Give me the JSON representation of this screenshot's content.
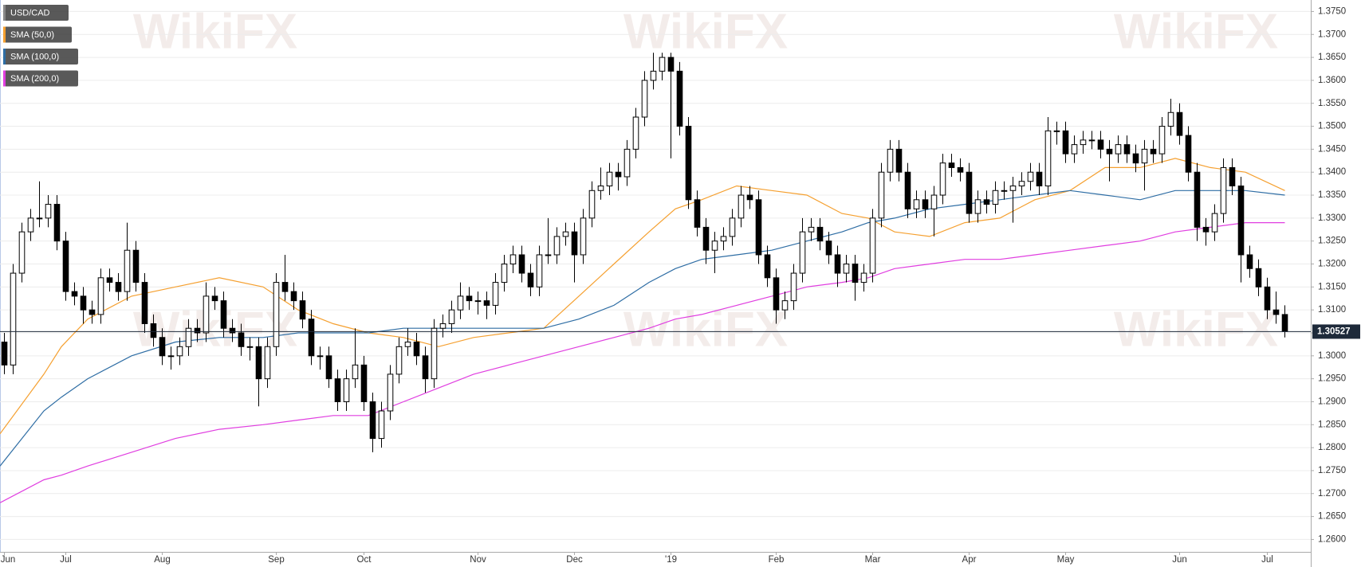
{
  "chart_data": {
    "type": "candlestick",
    "watermark": "WikiFX",
    "categories": [
      "Jun",
      null,
      null,
      null,
      null,
      null,
      null,
      "Jul",
      null,
      null,
      null,
      null,
      null,
      null,
      null,
      null,
      null,
      null,
      "Aug",
      null,
      null,
      null,
      null,
      null,
      null,
      null,
      null,
      null,
      null,
      null,
      null,
      "Sep",
      null,
      null,
      null,
      null,
      null,
      null,
      null,
      null,
      null,
      "Oct",
      null,
      null,
      null,
      null,
      null,
      null,
      null,
      null,
      null,
      null,
      null,
      null,
      "Nov",
      null,
      null,
      null,
      null,
      null,
      null,
      null,
      null,
      null,
      null,
      "Dec",
      null,
      null,
      null,
      null,
      null,
      null,
      null,
      null,
      null,
      null,
      "'19",
      null,
      null,
      null,
      null,
      null,
      null,
      null,
      null,
      null,
      null,
      null,
      "Feb",
      null,
      null,
      null,
      null,
      null,
      null,
      null,
      null,
      null,
      null,
      "Mar",
      null,
      null,
      null,
      null,
      null,
      null,
      null,
      null,
      null,
      null,
      "Apr",
      null,
      null,
      null,
      null,
      null,
      null,
      null,
      null,
      null,
      null,
      "May",
      null,
      null,
      null,
      null,
      null,
      null,
      null,
      null,
      null,
      null,
      null,
      null,
      "Jun",
      null,
      null,
      null,
      null,
      null,
      null,
      null,
      null,
      null,
      "Jul",
      null,
      null
    ],
    "series": [
      {
        "name": "USD/CAD",
        "color": "#000000",
        "open": [
          1.303,
          1.298,
          1.318,
          1.327,
          1.33,
          1.33,
          1.333,
          1.325,
          1.314,
          1.313,
          1.31,
          1.309,
          1.317,
          1.316,
          1.314,
          1.323,
          1.316,
          1.307,
          1.304,
          1.3,
          1.3,
          1.302,
          1.306,
          1.305,
          1.313,
          1.312,
          1.306,
          1.305,
          1.302,
          1.302,
          1.295,
          1.302,
          1.316,
          1.314,
          1.312,
          1.308,
          1.3,
          1.3,
          1.295,
          1.29,
          1.295,
          1.298,
          1.29,
          1.282,
          1.288,
          1.296,
          1.302,
          1.303,
          1.3,
          1.295,
          1.306,
          1.307,
          1.31,
          1.313,
          1.312,
          1.312,
          1.311,
          1.316,
          1.32,
          1.322,
          1.318,
          1.315,
          1.322,
          1.322,
          1.326,
          1.327,
          1.322,
          1.33,
          1.336,
          1.337,
          1.34,
          1.339,
          1.345,
          1.352,
          1.36,
          1.362,
          1.365,
          1.362,
          1.35,
          1.334,
          1.328,
          1.323,
          1.325,
          1.326,
          1.33,
          1.335,
          1.334,
          1.322,
          1.317,
          1.31,
          1.312,
          1.318,
          1.327,
          1.328,
          1.325,
          1.322,
          1.318,
          1.32,
          1.316,
          1.318,
          1.33,
          1.34,
          1.345,
          1.34,
          1.332,
          1.334,
          1.332,
          1.335,
          1.342,
          1.341,
          1.34,
          1.331,
          1.334,
          1.333,
          1.336,
          1.336,
          1.337,
          1.338,
          1.34,
          1.337,
          1.349,
          1.349,
          1.344,
          1.346,
          1.347,
          1.347,
          1.345,
          1.344,
          1.346,
          1.344,
          1.342,
          1.345,
          1.344,
          1.35,
          1.353,
          1.348,
          1.34,
          1.328,
          1.327,
          1.331,
          1.341,
          1.337,
          1.322,
          1.319,
          1.315,
          1.31,
          1.309
        ],
        "high": [
          1.305,
          1.32,
          1.329,
          1.332,
          1.338,
          1.335,
          1.335,
          1.327,
          1.316,
          1.315,
          1.312,
          1.319,
          1.319,
          1.318,
          1.329,
          1.325,
          1.318,
          1.309,
          1.306,
          1.302,
          1.304,
          1.308,
          1.308,
          1.316,
          1.315,
          1.314,
          1.308,
          1.307,
          1.304,
          1.304,
          1.304,
          1.318,
          1.322,
          1.316,
          1.314,
          1.31,
          1.302,
          1.302,
          1.297,
          1.297,
          1.306,
          1.3,
          1.292,
          1.29,
          1.298,
          1.304,
          1.306,
          1.305,
          1.302,
          1.308,
          1.309,
          1.312,
          1.316,
          1.315,
          1.314,
          1.314,
          1.318,
          1.322,
          1.324,
          1.324,
          1.32,
          1.324,
          1.33,
          1.328,
          1.329,
          1.329,
          1.332,
          1.338,
          1.341,
          1.342,
          1.342,
          1.347,
          1.354,
          1.362,
          1.366,
          1.366,
          1.366,
          1.364,
          1.352,
          1.336,
          1.33,
          1.327,
          1.328,
          1.332,
          1.337,
          1.337,
          1.336,
          1.324,
          1.319,
          1.314,
          1.32,
          1.33,
          1.33,
          1.33,
          1.327,
          1.324,
          1.322,
          1.322,
          1.32,
          1.332,
          1.342,
          1.347,
          1.347,
          1.342,
          1.336,
          1.336,
          1.337,
          1.344,
          1.344,
          1.343,
          1.342,
          1.336,
          1.336,
          1.338,
          1.338,
          1.339,
          1.34,
          1.342,
          1.342,
          1.352,
          1.351,
          1.351,
          1.348,
          1.349,
          1.349,
          1.349,
          1.347,
          1.348,
          1.348,
          1.346,
          1.347,
          1.347,
          1.352,
          1.356,
          1.355,
          1.35,
          1.342,
          1.33,
          1.333,
          1.343,
          1.343,
          1.339,
          1.324,
          1.321,
          1.317,
          1.314,
          1.311
        ],
        "low": [
          1.296,
          1.296,
          1.316,
          1.325,
          1.328,
          1.328,
          1.323,
          1.312,
          1.311,
          1.307,
          1.307,
          1.307,
          1.314,
          1.312,
          1.312,
          1.314,
          1.305,
          1.302,
          1.298,
          1.297,
          1.298,
          1.3,
          1.303,
          1.303,
          1.31,
          1.304,
          1.303,
          1.3,
          1.299,
          1.289,
          1.293,
          1.3,
          1.312,
          1.31,
          1.306,
          1.298,
          1.297,
          1.293,
          1.288,
          1.288,
          1.293,
          1.288,
          1.279,
          1.28,
          1.286,
          1.294,
          1.3,
          1.298,
          1.292,
          1.293,
          1.304,
          1.305,
          1.308,
          1.31,
          1.309,
          1.308,
          1.309,
          1.314,
          1.318,
          1.316,
          1.313,
          1.313,
          1.32,
          1.32,
          1.324,
          1.316,
          1.32,
          1.328,
          1.334,
          1.335,
          1.336,
          1.337,
          1.343,
          1.35,
          1.358,
          1.36,
          1.343,
          1.348,
          1.332,
          1.326,
          1.32,
          1.318,
          1.323,
          1.324,
          1.328,
          1.332,
          1.32,
          1.315,
          1.307,
          1.308,
          1.31,
          1.316,
          1.325,
          1.323,
          1.32,
          1.315,
          1.316,
          1.312,
          1.314,
          1.316,
          1.328,
          1.338,
          1.338,
          1.33,
          1.33,
          1.33,
          1.326,
          1.333,
          1.339,
          1.338,
          1.329,
          1.329,
          1.331,
          1.331,
          1.334,
          1.329,
          1.335,
          1.336,
          1.335,
          1.335,
          1.346,
          1.342,
          1.342,
          1.344,
          1.345,
          1.343,
          1.338,
          1.342,
          1.342,
          1.34,
          1.336,
          1.342,
          1.342,
          1.348,
          1.346,
          1.338,
          1.325,
          1.324,
          1.325,
          1.329,
          1.335,
          1.316,
          1.317,
          1.313,
          1.308,
          1.307,
          1.304
        ],
        "close": [
          1.298,
          1.318,
          1.327,
          1.33,
          1.33,
          1.333,
          1.325,
          1.314,
          1.313,
          1.31,
          1.309,
          1.317,
          1.316,
          1.314,
          1.323,
          1.316,
          1.307,
          1.304,
          1.3,
          1.3,
          1.302,
          1.306,
          1.305,
          1.313,
          1.312,
          1.306,
          1.305,
          1.302,
          1.302,
          1.295,
          1.302,
          1.316,
          1.314,
          1.312,
          1.308,
          1.3,
          1.3,
          1.295,
          1.29,
          1.295,
          1.298,
          1.29,
          1.282,
          1.288,
          1.296,
          1.302,
          1.303,
          1.3,
          1.295,
          1.306,
          1.307,
          1.31,
          1.313,
          1.312,
          1.312,
          1.311,
          1.316,
          1.32,
          1.322,
          1.318,
          1.315,
          1.322,
          1.322,
          1.326,
          1.327,
          1.322,
          1.33,
          1.336,
          1.337,
          1.34,
          1.339,
          1.345,
          1.352,
          1.36,
          1.362,
          1.365,
          1.362,
          1.35,
          1.334,
          1.328,
          1.323,
          1.325,
          1.326,
          1.33,
          1.335,
          1.334,
          1.322,
          1.317,
          1.31,
          1.312,
          1.318,
          1.327,
          1.328,
          1.325,
          1.322,
          1.318,
          1.32,
          1.316,
          1.318,
          1.33,
          1.34,
          1.345,
          1.34,
          1.332,
          1.334,
          1.332,
          1.335,
          1.342,
          1.341,
          1.34,
          1.331,
          1.334,
          1.333,
          1.336,
          1.336,
          1.337,
          1.338,
          1.34,
          1.337,
          1.349,
          1.349,
          1.344,
          1.346,
          1.347,
          1.347,
          1.345,
          1.344,
          1.346,
          1.344,
          1.342,
          1.345,
          1.344,
          1.35,
          1.353,
          1.348,
          1.34,
          1.328,
          1.327,
          1.331,
          1.341,
          1.337,
          1.322,
          1.319,
          1.315,
          1.31,
          1.309,
          1.30527
        ]
      },
      {
        "name": "SMA (50,0)",
        "color": "#f5a030",
        "type": "line",
        "x": [
          -0.5,
          4.5,
          6.5,
          9.5,
          14.5,
          19.5,
          24.5,
          29.5,
          33.5,
          37.5,
          41.5,
          45.5,
          49.5,
          53.5,
          57.5,
          61.5,
          65.5,
          69.5,
          73.5,
          76.5,
          79.5,
          83.5,
          87.5,
          91.5,
          95.5,
          98.5,
          101.5,
          105.5,
          109.5,
          113.5,
          117.5,
          121.5,
          125.5,
          129.5,
          133.5,
          137.5,
          141.5,
          146
        ],
        "values": [
          1.283,
          1.296,
          1.302,
          1.308,
          1.313,
          1.315,
          1.317,
          1.315,
          1.31,
          1.307,
          1.305,
          1.304,
          1.302,
          1.304,
          1.305,
          1.306,
          1.313,
          1.32,
          1.327,
          1.332,
          1.334,
          1.337,
          1.336,
          1.335,
          1.331,
          1.33,
          1.327,
          1.326,
          1.329,
          1.33,
          1.334,
          1.336,
          1.341,
          1.341,
          1.343,
          1.341,
          1.34,
          1.336
        ]
      },
      {
        "name": "SMA (100,0)",
        "color": "#2e6da4",
        "type": "line",
        "x": [
          -0.5,
          4.5,
          6.5,
          9.5,
          14.5,
          19.5,
          24.5,
          29.5,
          33.5,
          37.5,
          41.5,
          45.5,
          49.5,
          53.5,
          57.5,
          61.5,
          65.5,
          69.5,
          73.5,
          76.5,
          79.5,
          83.5,
          87.5,
          91.5,
          95.5,
          98.5,
          101.5,
          105.5,
          109.5,
          113.5,
          117.5,
          121.5,
          125.5,
          129.5,
          133.5,
          137.5,
          141.5,
          146
        ],
        "values": [
          1.276,
          1.288,
          1.291,
          1.295,
          1.3,
          1.303,
          1.304,
          1.304,
          1.305,
          1.305,
          1.305,
          1.306,
          1.306,
          1.306,
          1.306,
          1.306,
          1.308,
          1.311,
          1.316,
          1.319,
          1.321,
          1.322,
          1.323,
          1.325,
          1.327,
          1.329,
          1.33,
          1.332,
          1.333,
          1.334,
          1.335,
          1.336,
          1.335,
          1.334,
          1.336,
          1.336,
          1.336,
          1.335
        ]
      },
      {
        "name": "SMA (200,0)",
        "color": "#e03ee0",
        "type": "line",
        "x": [
          -0.5,
          4.5,
          6.5,
          9.5,
          14.5,
          19.5,
          24.5,
          29.5,
          33.5,
          37.5,
          41.5,
          45.5,
          49.5,
          53.5,
          57.5,
          61.5,
          65.5,
          69.5,
          73.5,
          76.5,
          79.5,
          83.5,
          87.5,
          91.5,
          95.5,
          98.5,
          101.5,
          105.5,
          109.5,
          113.5,
          117.5,
          121.5,
          125.5,
          129.5,
          133.5,
          137.5,
          141.5,
          146
        ],
        "values": [
          1.268,
          1.273,
          1.274,
          1.276,
          1.279,
          1.282,
          1.284,
          1.285,
          1.286,
          1.287,
          1.287,
          1.29,
          1.293,
          1.296,
          1.298,
          1.3,
          1.302,
          1.304,
          1.306,
          1.308,
          1.309,
          1.311,
          1.313,
          1.315,
          1.316,
          1.317,
          1.319,
          1.32,
          1.321,
          1.321,
          1.322,
          1.323,
          1.324,
          1.325,
          1.327,
          1.328,
          1.329,
          1.329
        ]
      }
    ],
    "ylim": [
      1.2573,
      1.3775
    ],
    "yticks": [
      {
        "value": 1.26,
        "label": "1.2600"
      },
      {
        "value": 1.265,
        "label": "1.2650"
      },
      {
        "value": 1.27,
        "label": "1.2700"
      },
      {
        "value": 1.275,
        "label": "1.2750"
      },
      {
        "value": 1.28,
        "label": "1.2800"
      },
      {
        "value": 1.285,
        "label": "1.2850"
      },
      {
        "value": 1.29,
        "label": "1.2900"
      },
      {
        "value": 1.295,
        "label": "1.2950"
      },
      {
        "value": 1.3,
        "label": "1.3000"
      },
      {
        "value": 1.305,
        "label": "1.3050"
      },
      {
        "value": 1.31,
        "label": "1.3100"
      },
      {
        "value": 1.315,
        "label": "1.3150"
      },
      {
        "value": 1.32,
        "label": "1.3200"
      },
      {
        "value": 1.325,
        "label": "1.3250"
      },
      {
        "value": 1.33,
        "label": "1.3300"
      },
      {
        "value": 1.335,
        "label": "1.3350"
      },
      {
        "value": 1.34,
        "label": "1.3400"
      },
      {
        "value": 1.345,
        "label": "1.3450"
      },
      {
        "value": 1.35,
        "label": "1.3500"
      },
      {
        "value": 1.355,
        "label": "1.3550"
      },
      {
        "value": 1.36,
        "label": "1.3600"
      },
      {
        "value": 1.365,
        "label": "1.3650"
      },
      {
        "value": 1.37,
        "label": "1.3700"
      },
      {
        "value": 1.375,
        "label": "1.3750"
      }
    ],
    "grid": true,
    "legend": "top-left"
  }
}
